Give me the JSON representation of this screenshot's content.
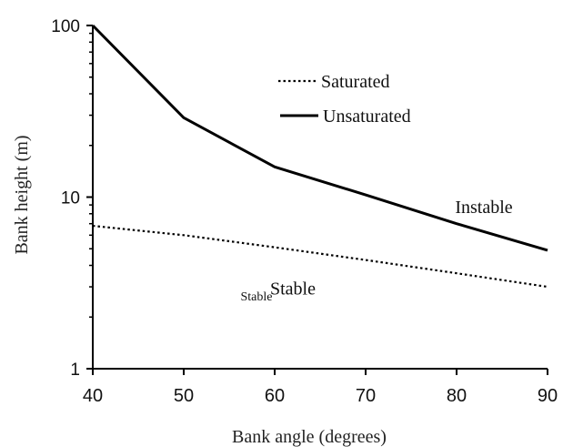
{
  "chart_data": {
    "type": "line",
    "xlabel": "Bank angle (degrees)",
    "ylabel": "Bank height (m)",
    "xlim": [
      40,
      90
    ],
    "ylim": [
      1,
      100
    ],
    "yscale": "log",
    "xticks": [
      "40",
      "50",
      "60",
      "70",
      "80",
      "90"
    ],
    "yticks": [
      "1",
      "10",
      "100"
    ],
    "grid": false,
    "legend_position": "top-center",
    "series": [
      {
        "name": "Saturated",
        "style": "dotted",
        "x": [
          40,
          50,
          60,
          70,
          80,
          90
        ],
        "y": [
          6.8,
          6.0,
          5.1,
          4.3,
          3.6,
          3.0
        ]
      },
      {
        "name": "Unsaturated",
        "style": "solid",
        "x": [
          40,
          50,
          60,
          70,
          80,
          90
        ],
        "y": [
          100,
          29,
          15,
          10.3,
          7.0,
          4.9
        ]
      }
    ],
    "annotations": [
      {
        "text": "Instable",
        "x": 83,
        "y": 8.1
      },
      {
        "text": "Stable",
        "x": 62,
        "y": 2.7
      },
      {
        "text": "Stable",
        "x": 58,
        "y": 2.5
      }
    ]
  }
}
